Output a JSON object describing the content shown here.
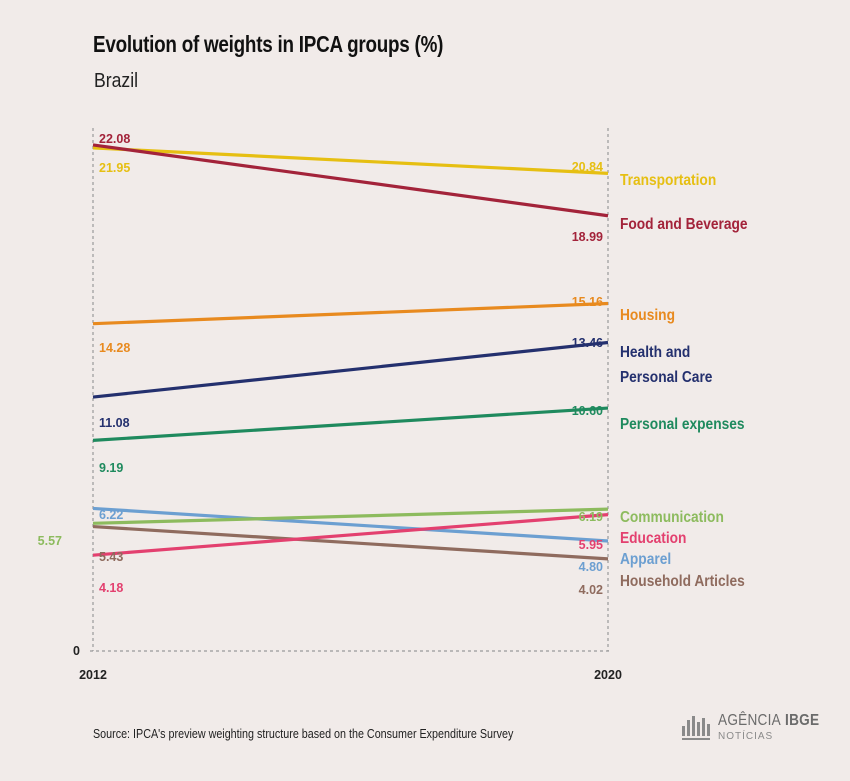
{
  "chart_data": {
    "type": "line",
    "title": "Evolution of weights in IPCA groups (%)",
    "subtitle": "Brazil",
    "x": [
      "2012",
      "2020"
    ],
    "y_zero_label": "0",
    "ylim": [
      0,
      24
    ],
    "grid": false,
    "series": [
      {
        "name": "Transportation",
        "values": [
          21.95,
          20.84
        ],
        "labels": [
          "21.95",
          "20.84"
        ],
        "color": "#e6bf12"
      },
      {
        "name": "Food and Beverage",
        "values": [
          22.08,
          18.99
        ],
        "labels": [
          "22.08",
          "18.99"
        ],
        "color": "#a3233a"
      },
      {
        "name": "Housing",
        "values": [
          14.28,
          15.16
        ],
        "labels": [
          "14.28",
          "15.16"
        ],
        "color": "#e88a1f"
      },
      {
        "name": "Health and\nPersonal Care",
        "values": [
          11.08,
          13.46
        ],
        "labels": [
          "11.08",
          "13.46"
        ],
        "color": "#24306e"
      },
      {
        "name": "Personal expenses",
        "values": [
          9.19,
          10.6
        ],
        "labels": [
          "9.19",
          "10.60"
        ],
        "color": "#1f8a5e"
      },
      {
        "name": "Communication",
        "values": [
          5.57,
          6.19
        ],
        "labels": [
          "5.57",
          "6.19"
        ],
        "color": "#8dbb5e"
      },
      {
        "name": "Education",
        "values": [
          4.18,
          5.95
        ],
        "labels": [
          "4.18",
          "5.95"
        ],
        "color": "#e3406f"
      },
      {
        "name": "Apparel",
        "values": [
          6.22,
          4.8
        ],
        "labels": [
          "6.22",
          "4.80"
        ],
        "color": "#6c9fd1"
      },
      {
        "name": "Household Articles",
        "values": [
          5.43,
          4.02
        ],
        "labels": [
          "5.43",
          "4.02"
        ],
        "color": "#8f6b5e"
      }
    ]
  },
  "source": "Source: IPCA's preview weighting structure based on the Consumer Expenditure Survey",
  "logo": {
    "name_a": "AGÊNCIA",
    "name_b": "IBGE",
    "sub": "NOTÍCIAS"
  }
}
